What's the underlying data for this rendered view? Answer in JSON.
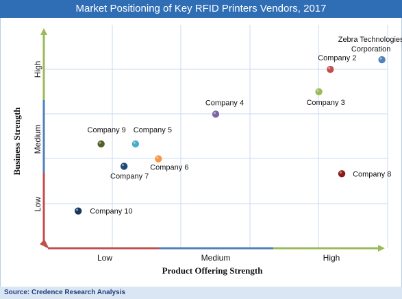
{
  "title": "Market Positioning of Key RFID Printers Vendors, 2017",
  "source": "Source: Credence Research Analysis",
  "colors": {
    "title_bg": "#2f6db5",
    "source_bg": "#dbe6f4",
    "grid": "#c9daf0",
    "x_axis_low": "#c0504d",
    "x_axis_medium": "#4f81bd",
    "x_axis_high": "#9bbb59",
    "y_axis_low": "#c0504d",
    "y_axis_medium": "#4f81bd",
    "y_axis_high": "#9bbb59"
  },
  "chart_data": {
    "type": "scatter",
    "title": "Market Positioning of Key RFID Printers Vendors, 2017",
    "xlabel": "Product Offering Strength",
    "ylabel": "Business Strength",
    "x_ticks": [
      "Low",
      "Medium",
      "High"
    ],
    "y_ticks": [
      "Low",
      "Medium",
      "High"
    ],
    "xlim": [
      0,
      3
    ],
    "ylim": [
      0,
      3
    ],
    "grid": true,
    "points": [
      {
        "label": "Zebra Technologies Corporation",
        "label_lines": [
          "Zebra Technologies",
          "Corporation"
        ],
        "x": 2.95,
        "y": 2.53,
        "color": "#4f81bd"
      },
      {
        "label": "Company 2",
        "x": 2.5,
        "y": 2.4,
        "color": "#c0504d"
      },
      {
        "label": "Company 3",
        "x": 2.4,
        "y": 2.1,
        "color": "#9bbb59"
      },
      {
        "label": "Company 4",
        "x": 1.5,
        "y": 1.8,
        "color": "#8064a2"
      },
      {
        "label": "Company 5",
        "x": 0.8,
        "y": 1.4,
        "color": "#4bacc6"
      },
      {
        "label": "Company 6",
        "x": 1.0,
        "y": 1.2,
        "color": "#f79646"
      },
      {
        "label": "Company 7",
        "x": 0.7,
        "y": 1.1,
        "color": "#1f497d"
      },
      {
        "label": "Company 8",
        "x": 2.6,
        "y": 1.0,
        "color": "#8b1a1a"
      },
      {
        "label": "Company 9",
        "x": 0.5,
        "y": 1.4,
        "color": "#4f6228"
      },
      {
        "label": "Company 10",
        "x": 0.3,
        "y": 0.5,
        "color": "#17375e"
      }
    ]
  }
}
